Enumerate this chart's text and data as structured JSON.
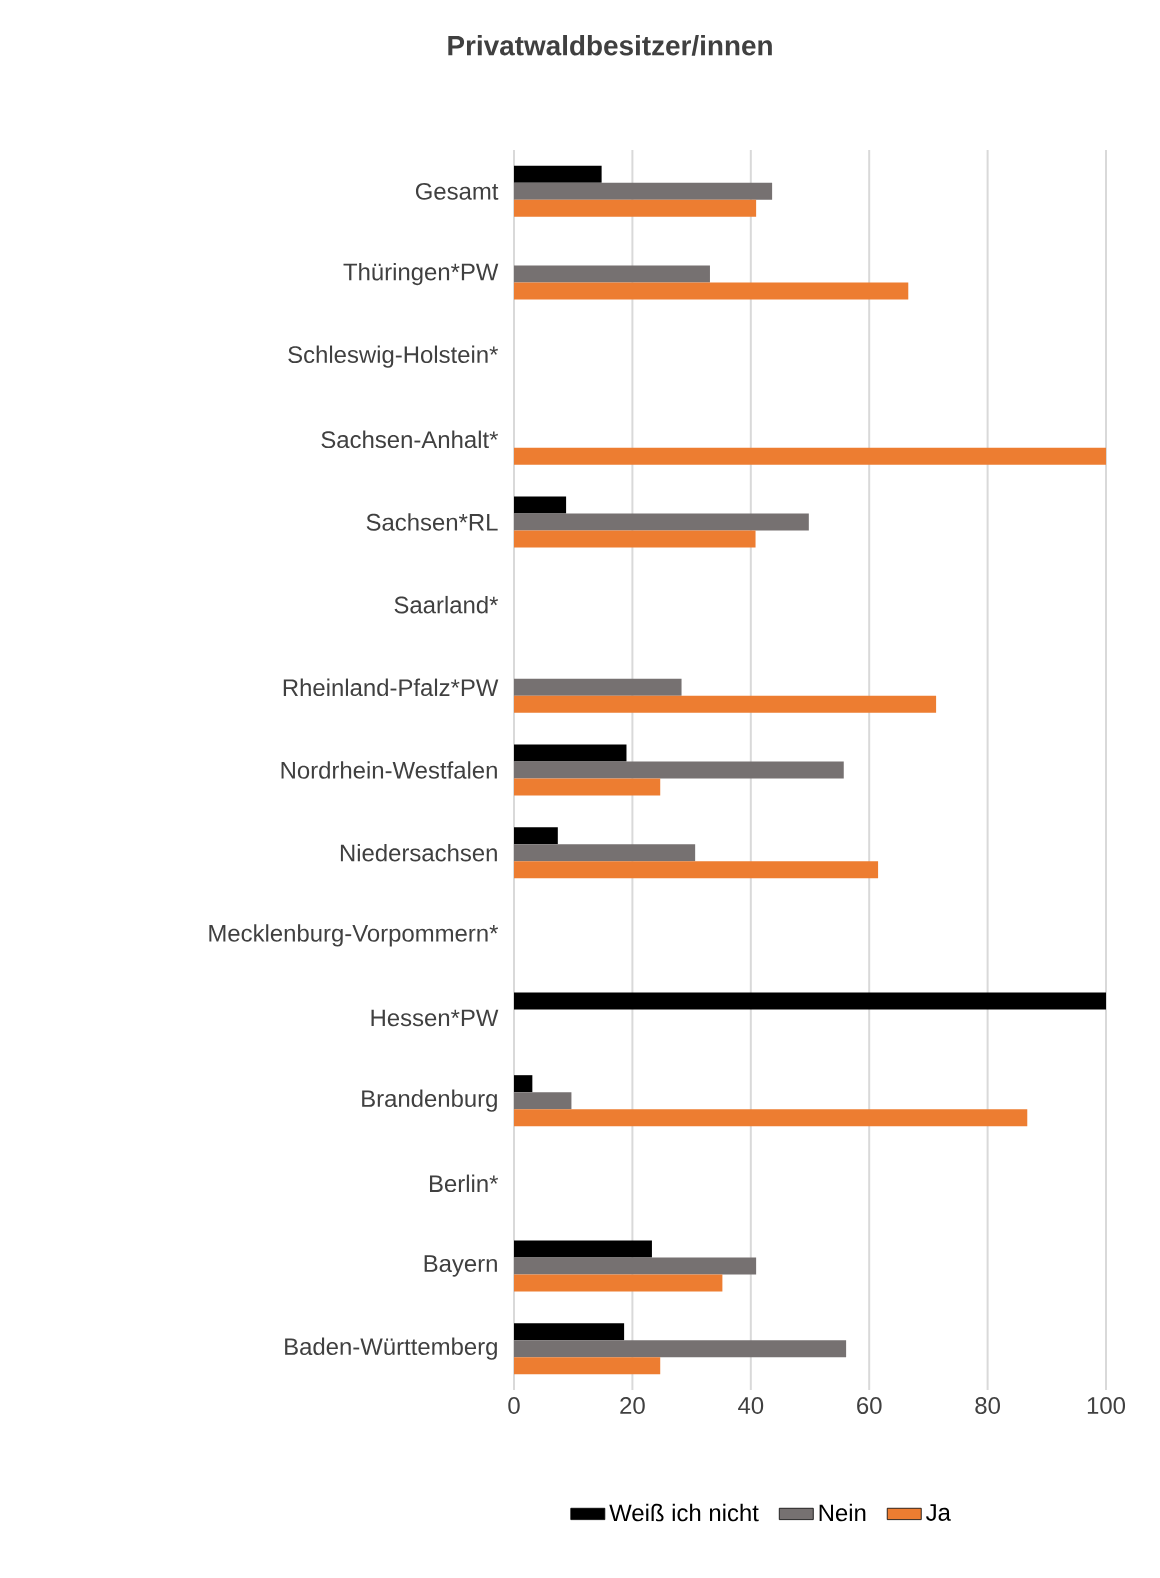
{
  "chart_data": {
    "type": "bar",
    "orientation": "horizontal",
    "title": "Privatwaldbesitzer/innen",
    "categories": [
      "Gesamt",
      "Thüringen*PW",
      "Schleswig-Holstein*",
      "Sachsen-Anhalt*",
      "Sachsen*RL",
      "Saarland*",
      "Rheinland-Pfalz*PW",
      "Nordrhein-Westfalen",
      "Niedersachsen",
      "Mecklenburg-Vorpommern*",
      "Hessen*PW",
      "Brandenburg",
      "Berlin*",
      "Bayern",
      "Baden-Württemberg"
    ],
    "series": [
      {
        "name": "Weiß ich nicht",
        "color": "#000000",
        "values": [
          14.8,
          null,
          null,
          null,
          8.8,
          null,
          null,
          19.0,
          7.4,
          null,
          100,
          3.1,
          null,
          23.3,
          18.6
        ]
      },
      {
        "name": "Nein",
        "color": "#767171",
        "values": [
          43.6,
          33.1,
          null,
          null,
          49.8,
          null,
          28.3,
          55.7,
          30.6,
          null,
          null,
          9.7,
          null,
          40.9,
          56.1
        ]
      },
      {
        "name": "Ja",
        "color": "#ed7d31",
        "values": [
          40.9,
          66.6,
          null,
          100,
          40.8,
          null,
          71.3,
          24.7,
          61.5,
          null,
          null,
          86.7,
          null,
          35.2,
          24.7
        ]
      }
    ],
    "xlim": [
      0,
      100
    ],
    "xticks": [
      0,
      20,
      40,
      60,
      80,
      100
    ],
    "grid": "x",
    "legend": "bottom"
  }
}
